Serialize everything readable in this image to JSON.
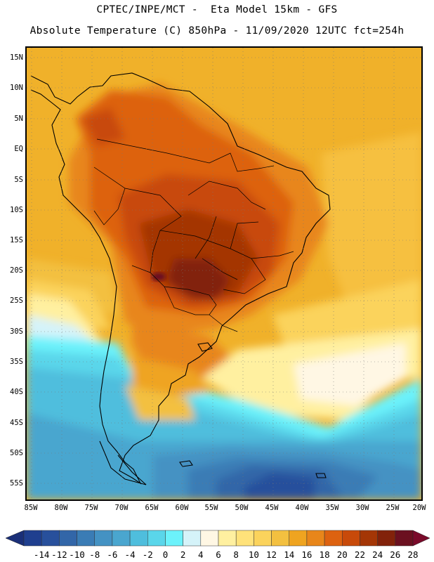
{
  "title_line1": "CPTEC/INPE/MCT -  Eta Model 15km - GFS",
  "title_line2": "Absolute Temperature (C) 850hPa - 11/09/2020 12UTC fct=254h",
  "lat_labels": [
    "15N",
    "10N",
    "5N",
    "EQ",
    "5S",
    "10S",
    "15S",
    "20S",
    "25S",
    "30S",
    "35S",
    "40S",
    "45S",
    "50S",
    "55S"
  ],
  "lon_labels": [
    "85W",
    "80W",
    "75W",
    "70W",
    "65W",
    "60W",
    "55W",
    "50W",
    "45W",
    "40W",
    "35W",
    "30W",
    "25W",
    "20W"
  ],
  "colorbar": {
    "labels": [
      "-14",
      "-12",
      "-10",
      "-8",
      "-6",
      "-4",
      "-2",
      "0",
      "2",
      "4",
      "6",
      "8",
      "10",
      "12",
      "14",
      "16",
      "18",
      "20",
      "22",
      "24",
      "26",
      "28"
    ],
    "colors": [
      "#1f3f8f",
      "#28509c",
      "#3266a8",
      "#3a7cb5",
      "#4492c3",
      "#4aa6cf",
      "#4fbedd",
      "#5ad6ea",
      "#6cf2fb",
      "#d5f3f9",
      "#fff7e4",
      "#fff0a0",
      "#ffe27a",
      "#fbd35c",
      "#f3c040",
      "#efa420",
      "#e8861a",
      "#dd6210",
      "#c84a0a",
      "#a43606",
      "#82220a",
      "#6b1020"
    ],
    "under_color": "#1a2f78",
    "over_color": "#7a0a2a"
  }
}
